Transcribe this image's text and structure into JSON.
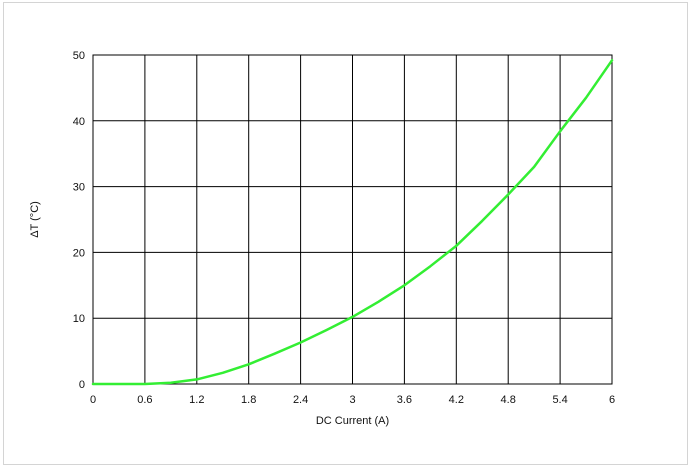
{
  "chart_data": {
    "type": "line",
    "title": "",
    "xlabel": "DC Current (A)",
    "ylabel": "ΔT (°C)",
    "xlim": [
      0,
      6
    ],
    "ylim": [
      0,
      50
    ],
    "x_ticks": [
      "0",
      "0.6",
      "1.2",
      "1.8",
      "2.4",
      "3",
      "3.6",
      "4.2",
      "4.8",
      "5.4",
      "6"
    ],
    "y_ticks": [
      "0",
      "10",
      "20",
      "30",
      "40",
      "50"
    ],
    "grid": true,
    "legend": "none",
    "series": [
      {
        "color": "#33ee33",
        "x": [
          0,
          0.6,
          0.9,
          1.2,
          1.5,
          1.8,
          2.1,
          2.4,
          2.7,
          3.0,
          3.3,
          3.6,
          3.9,
          4.2,
          4.5,
          4.8,
          5.1,
          5.4,
          5.7,
          6.0
        ],
        "y": [
          0,
          0,
          0.2,
          0.7,
          1.7,
          3.0,
          4.6,
          6.3,
          8.2,
          10.2,
          12.5,
          15.0,
          17.9,
          21.0,
          24.8,
          28.8,
          33.0,
          38.4,
          43.5,
          49.2
        ]
      }
    ]
  }
}
